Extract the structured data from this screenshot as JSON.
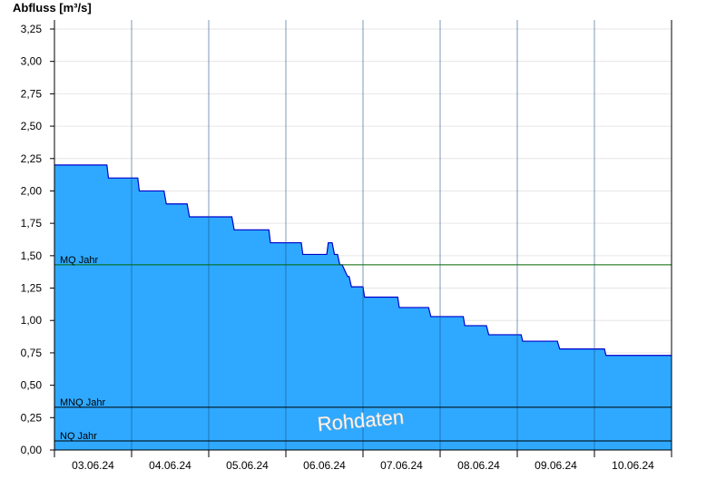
{
  "chart_data": {
    "type": "area",
    "ylabel": "Abfluss [m³/s]",
    "ylim": [
      0,
      3.32
    ],
    "y_ticks": [
      "0,00",
      "0,25",
      "0,50",
      "0,75",
      "1,00",
      "1,25",
      "1,50",
      "1,75",
      "2,00",
      "2,25",
      "2,50",
      "2,75",
      "3,00",
      "3,25"
    ],
    "x_tick_labels": [
      "03.06.24",
      "04.06.24",
      "05.06.24",
      "06.06.24",
      "07.06.24",
      "08.06.24",
      "09.06.24",
      "10.06.24"
    ],
    "x_range_days": [
      2.0,
      10.0
    ],
    "watermark": "Rohdaten",
    "fill_color": "#2EA9FF",
    "line_color": "#0000CC",
    "reference_lines": [
      {
        "label": "MQ Jahr",
        "value": 1.43,
        "color": "#006600"
      },
      {
        "label": "MNQ Jahr",
        "value": 0.33,
        "color": "#000000"
      },
      {
        "label": "NQ Jahr",
        "value": 0.07,
        "color": "#000000"
      }
    ],
    "series": [
      {
        "x_days": [
          2.0,
          2.68,
          2.7,
          3.08,
          3.1,
          3.42,
          3.45,
          3.72,
          3.75,
          4.3,
          4.33,
          4.78,
          4.8,
          5.2,
          5.22,
          5.53,
          5.55,
          5.6,
          5.63,
          5.67,
          5.7,
          5.73,
          5.8,
          5.82,
          5.85,
          6.0,
          6.02,
          6.45,
          6.47,
          6.85,
          6.88,
          7.3,
          7.32,
          7.6,
          7.63,
          8.05,
          8.07,
          8.52,
          8.55,
          9.13,
          9.15,
          9.62,
          9.65,
          9.93,
          9.95,
          10.0
        ],
        "values": [
          2.2,
          2.2,
          2.1,
          2.1,
          2.0,
          2.0,
          1.9,
          1.9,
          1.8,
          1.8,
          1.7,
          1.7,
          1.6,
          1.6,
          1.51,
          1.51,
          1.6,
          1.6,
          1.51,
          1.51,
          1.43,
          1.43,
          1.34,
          1.34,
          1.26,
          1.26,
          1.18,
          1.18,
          1.1,
          1.1,
          1.03,
          1.03,
          0.96,
          0.96,
          0.89,
          0.89,
          0.84,
          0.84,
          0.78,
          0.78,
          0.73,
          0.73,
          0.73,
          0.73,
          0.73,
          0.73
        ]
      }
    ]
  }
}
